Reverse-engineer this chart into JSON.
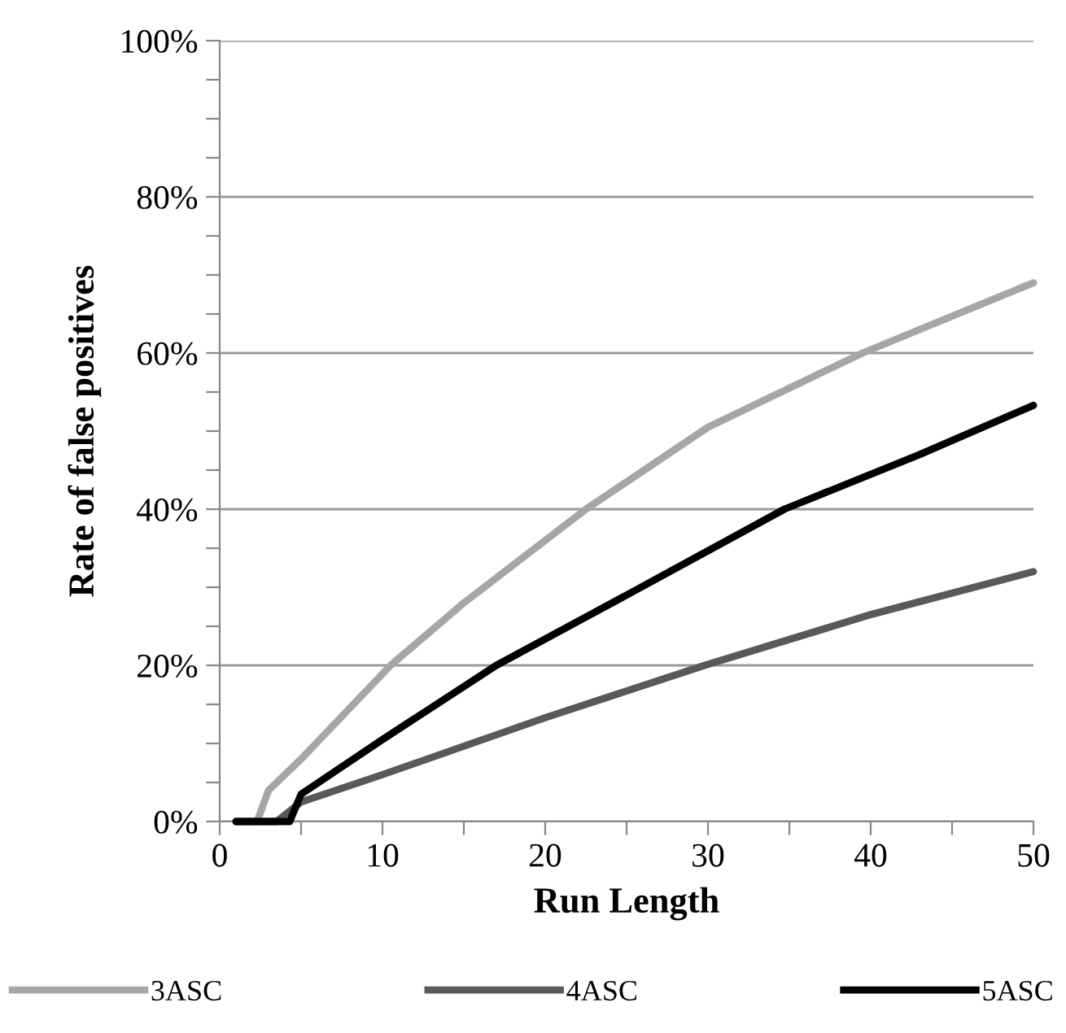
{
  "chart_data": {
    "type": "line",
    "xlabel": "Run Length",
    "ylabel": "Rate of false positives",
    "xlim": [
      0,
      50
    ],
    "ylim": [
      0,
      100
    ],
    "xticks": [
      0,
      {
        "value": 5,
        "label": null
      },
      10,
      {
        "value": 15,
        "label": null
      },
      20,
      {
        "value": 25,
        "label": null
      },
      30,
      {
        "value": 35,
        "label": null
      },
      40,
      {
        "value": 45,
        "label": null
      },
      50
    ],
    "yticks": [
      {
        "value": 0,
        "label": "0%"
      },
      {
        "value": 5,
        "label": null
      },
      {
        "value": 10,
        "label": null
      },
      {
        "value": 15,
        "label": null
      },
      {
        "value": 20,
        "label": "20%"
      },
      {
        "value": 25,
        "label": null
      },
      {
        "value": 30,
        "label": null
      },
      {
        "value": 35,
        "label": null
      },
      {
        "value": 40,
        "label": "40%"
      },
      {
        "value": 45,
        "label": null
      },
      {
        "value": 50,
        "label": null
      },
      {
        "value": 55,
        "label": null
      },
      {
        "value": 60,
        "label": "60%"
      },
      {
        "value": 65,
        "label": null
      },
      {
        "value": 70,
        "label": null
      },
      {
        "value": 75,
        "label": null
      },
      {
        "value": 80,
        "label": "80%"
      },
      {
        "value": 85,
        "label": null
      },
      {
        "value": 90,
        "label": null
      },
      {
        "value": 95,
        "label": null
      },
      {
        "value": 100,
        "label": "100%"
      }
    ],
    "grid": "y",
    "legend": "bottom",
    "marker": "none",
    "line_style": "solid",
    "series": [
      {
        "name": "3ASC",
        "color": "#a6a6a6",
        "x": [
          1,
          2.3,
          3,
          5,
          10.5,
          15,
          22.5,
          30,
          39.5,
          50
        ],
        "values": [
          0,
          0,
          4,
          8,
          20,
          28,
          40,
          50.5,
          60,
          69
        ]
      },
      {
        "name": "4ASC",
        "color": "#595959",
        "x": [
          1,
          3.5,
          5,
          10,
          20,
          29.8,
          40,
          50
        ],
        "values": [
          0,
          0,
          2.5,
          6,
          13.3,
          20,
          26.5,
          32
        ]
      },
      {
        "name": "5ASC",
        "color": "#000000",
        "x": [
          1,
          4.3,
          5,
          10,
          17,
          25,
          34.7,
          43,
          50
        ],
        "values": [
          0,
          0,
          3.5,
          10.5,
          20,
          29,
          40,
          47,
          53.3
        ]
      }
    ]
  }
}
